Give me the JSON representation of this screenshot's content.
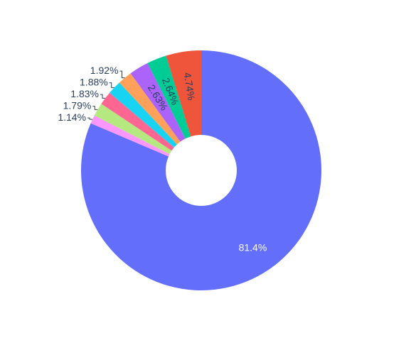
{
  "chart_data": {
    "type": "pie",
    "hole": true,
    "direction": "clockwise",
    "values": [
      81.4,
      1.14,
      1.79,
      1.83,
      1.88,
      1.92,
      2.63,
      2.64,
      4.74
    ],
    "value_labels": [
      "81.4%",
      "1.14%",
      "1.79%",
      "1.83%",
      "1.88%",
      "1.92%",
      "2.63%",
      "2.64%",
      "4.74%"
    ],
    "colors": [
      "#636efa",
      "#ff97ff",
      "#b6e880",
      "#ff6692",
      "#19d3f3",
      "#ffa15a",
      "#ab63fa",
      "#00cc96",
      "#ef553b"
    ]
  }
}
